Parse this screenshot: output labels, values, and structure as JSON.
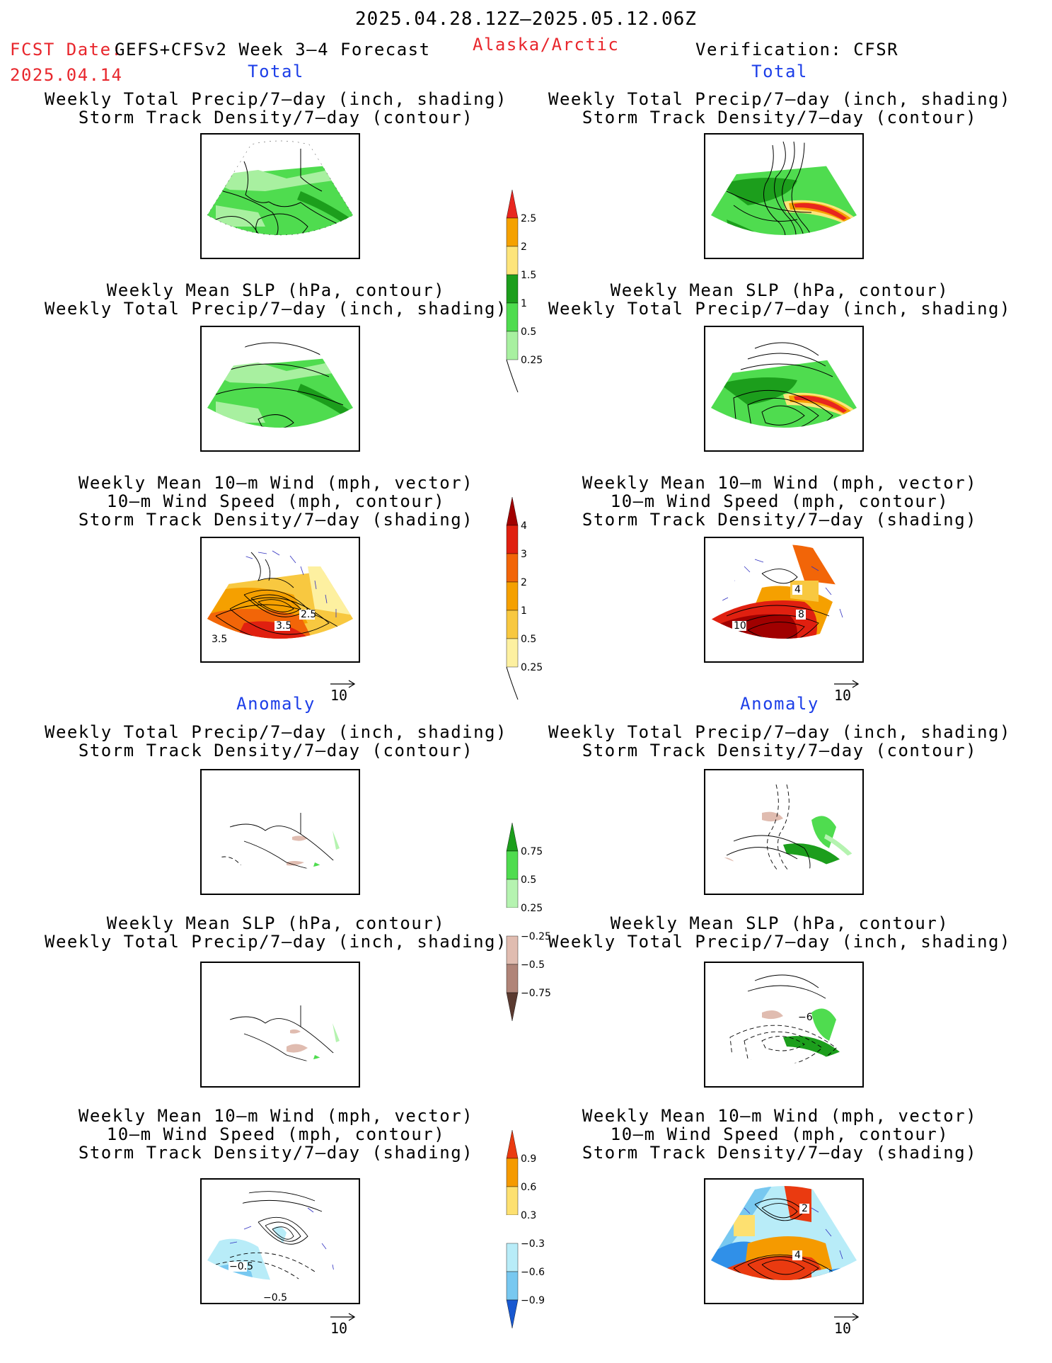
{
  "header": {
    "date_range": "2025.04.28.12Z–2025.05.12.06Z",
    "fcst_label": "FCST Date:",
    "fcst_model": "GEFS+CFSv2 Week 3–4 Forecast",
    "fcst_date": "2025.04.14",
    "region": "Alaska/Arctic",
    "verification": "Verification: CFSR"
  },
  "sections": {
    "total": "Total",
    "anomaly": "Anomaly"
  },
  "panels": {
    "precip_storm": {
      "line1": "Weekly Total Precip/7–day (inch, shading)",
      "line2": "Storm Track Density/7–day (contour)"
    },
    "slp_precip": {
      "line1": "Weekly Mean SLP (hPa, contour)",
      "line2": "Weekly Total Precip/7–day (inch, shading)"
    },
    "wind_storm": {
      "line1": "Weekly Mean 10–m Wind (mph, vector)",
      "line2": "10–m Wind Speed (mph, contour)",
      "line3": "Storm Track Density/7–day (shading)"
    }
  },
  "map_labels": {
    "fc_total_wind": [
      "3.5",
      "3.5",
      "2.5"
    ],
    "obs_total_wind": [
      "10",
      "8",
      "4"
    ],
    "fc_anom_wind": [
      "−0.5",
      "−0.5"
    ],
    "obs_anom_slp": [
      "−6"
    ],
    "obs_anom_wind": [
      "2",
      "4"
    ]
  },
  "vector_ref": "10",
  "colorbars": {
    "precip_total": {
      "labels": [
        "2.5",
        "2",
        "1.5",
        "1",
        "0.5",
        "0.25"
      ],
      "colors": [
        "#e8261f",
        "#f5a100",
        "#fde47a",
        "#1c9e1c",
        "#4fdc4f",
        "#a8f0a0"
      ]
    },
    "storm_total": {
      "labels": [
        "4",
        "3",
        "2",
        "1",
        "0.5",
        "0.25"
      ],
      "colors": [
        "#a00000",
        "#e02010",
        "#f26508",
        "#f5a000",
        "#f8c840",
        "#fdf0a0"
      ]
    },
    "precip_anom": {
      "labels": [
        "0.75",
        "0.5",
        "0.25",
        "−0.25",
        "−0.5",
        "−0.75"
      ],
      "colors": [
        "#1c9e1c",
        "#4fdc4f",
        "#b5f3b0",
        "#ffffff",
        "#e0bcb0",
        "#b08478",
        "#806050",
        "#5a3a30"
      ]
    },
    "storm_anom": {
      "labels": [
        "0.9",
        "0.6",
        "0.3",
        "−0.3",
        "−0.6",
        "−0.9"
      ],
      "colors": [
        "#ea3a10",
        "#f59a00",
        "#fde070",
        "#ffffff",
        "#b8ecf8",
        "#78c8f0",
        "#3090e8",
        "#1858d0"
      ]
    }
  }
}
